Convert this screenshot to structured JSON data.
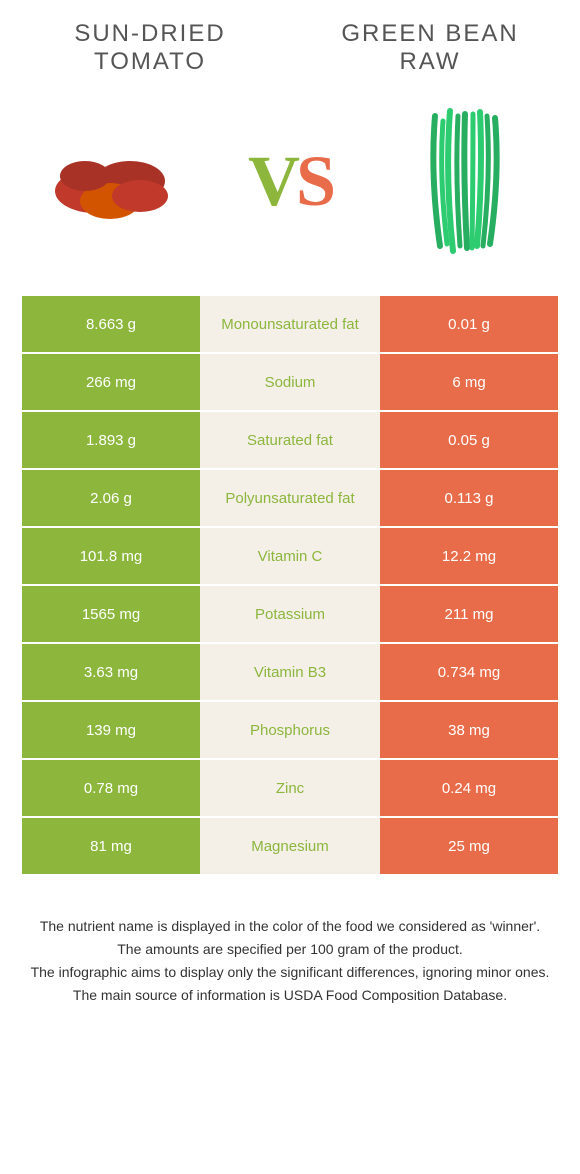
{
  "left_food": {
    "title": "SUN-DRIED TOMATO",
    "color": "#8cb63c"
  },
  "right_food": {
    "title": "GREEN BEAN RAW",
    "color": "#e86c4a"
  },
  "vs": {
    "v": "V",
    "s": "S"
  },
  "rows": [
    {
      "left": "8.663 g",
      "label": "Monounsaturated fat",
      "right": "0.01 g",
      "winner": "left"
    },
    {
      "left": "266 mg",
      "label": "Sodium",
      "right": "6 mg",
      "winner": "left"
    },
    {
      "left": "1.893 g",
      "label": "Saturated fat",
      "right": "0.05 g",
      "winner": "left"
    },
    {
      "left": "2.06 g",
      "label": "Polyunsaturated fat",
      "right": "0.113 g",
      "winner": "left"
    },
    {
      "left": "101.8 mg",
      "label": "Vitamin C",
      "right": "12.2 mg",
      "winner": "left"
    },
    {
      "left": "1565 mg",
      "label": "Potassium",
      "right": "211 mg",
      "winner": "left"
    },
    {
      "left": "3.63 mg",
      "label": "Vitamin B3",
      "right": "0.734 mg",
      "winner": "left"
    },
    {
      "left": "139 mg",
      "label": "Phosphorus",
      "right": "38 mg",
      "winner": "left"
    },
    {
      "left": "0.78 mg",
      "label": "Zinc",
      "right": "0.24 mg",
      "winner": "left"
    },
    {
      "left": "81 mg",
      "label": "Magnesium",
      "right": "25 mg",
      "winner": "left"
    }
  ],
  "footer": [
    "The nutrient name is displayed in the color of the food we considered as 'winner'.",
    "The amounts are specified per 100 gram of the product.",
    "The infographic aims to display only the significant differences, ignoring minor ones.",
    "The main source of information is USDA Food Composition Database."
  ],
  "left_svg": {
    "fill1": "#c0392b",
    "fill2": "#a93226",
    "fill3": "#d35400"
  },
  "right_svg": {
    "stroke": "#27ae60",
    "stroke2": "#2ecc71"
  }
}
